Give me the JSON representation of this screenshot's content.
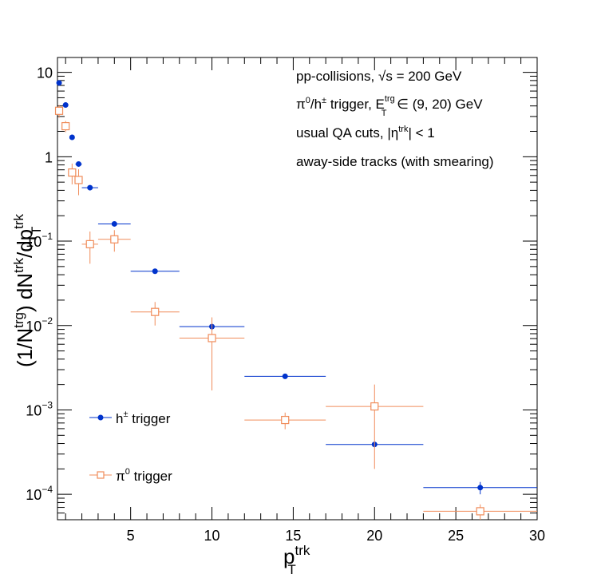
{
  "chart_data": {
    "type": "scatter",
    "xlabel": {
      "main": "p",
      "sup": "trk",
      "sub": "T"
    },
    "ylabel": {
      "open": "(1/N",
      "sup1": "trg",
      "mid": ") dN",
      "sup2": "trk",
      "slash": "/dp",
      "sup3": "trk",
      "sub3": "T"
    },
    "xlim": [
      0.5,
      30
    ],
    "ylim": [
      5e-05,
      15
    ],
    "yscale": "log",
    "xticks": [
      5,
      10,
      15,
      20,
      25,
      30
    ],
    "xtick_labels": [
      "5",
      "10",
      "15",
      "20",
      "25",
      "30"
    ],
    "yticks_labels": [
      {
        "v": 10,
        "base": "10",
        "exp": ""
      },
      {
        "v": 1,
        "base": "1",
        "exp": ""
      },
      {
        "v": 0.1,
        "base": "10",
        "exp": "−1"
      },
      {
        "v": 0.01,
        "base": "10",
        "exp": "−2"
      },
      {
        "v": 0.001,
        "base": "10",
        "exp": "−3"
      },
      {
        "v": 0.0001,
        "base": "10",
        "exp": "−4"
      }
    ],
    "annotations": {
      "line1_a": "pp-collisions, ",
      "line1_sqrt": "√s",
      "line1_b": " = 200 GeV",
      "line2_a": "π",
      "line2_a_sup": "0",
      "line2_b": "/h",
      "line2_b_sup": "±",
      "line2_c": " trigger, E",
      "line2_c_sup": "trg",
      "line2_c_sub": "T",
      "line2_d": " ∈ (9, 20) GeV",
      "line3_a": "usual QA cuts, |η",
      "line3_sup": "trk",
      "line3_b": "| < 1",
      "line4": "away-side tracks (with smearing)"
    },
    "legend": {
      "placement": "bottom-left",
      "h_main": "h",
      "h_sup": "±",
      "h_rest": " trigger",
      "pi_main": "π",
      "pi_sup": "0",
      "pi_rest": " trigger"
    },
    "series": [
      {
        "name": "h± trigger",
        "color": "#0033cc",
        "marker": "filled-circle",
        "points": [
          {
            "x": 0.6,
            "y": 7.5,
            "xerr": 0.1,
            "yerr": 0
          },
          {
            "x": 1.0,
            "y": 4.1,
            "xerr": 0.1,
            "yerr": 0
          },
          {
            "x": 1.4,
            "y": 1.7,
            "xerr": 0.1,
            "yerr": 0
          },
          {
            "x": 1.8,
            "y": 0.82,
            "xerr": 0.2,
            "yerr": 0
          },
          {
            "x": 2.5,
            "y": 0.43,
            "xerr": 0.5,
            "yerr": 0
          },
          {
            "x": 4.0,
            "y": 0.16,
            "xerr": 1.0,
            "yerr": 0
          },
          {
            "x": 6.5,
            "y": 0.044,
            "xerr": 1.5,
            "yerr": 0
          },
          {
            "x": 10.0,
            "y": 0.0097,
            "xerr": 2.0,
            "yerr": 0.001
          },
          {
            "x": 14.5,
            "y": 0.0025,
            "xerr": 2.5,
            "yerr": 0.0001
          },
          {
            "x": 20.0,
            "y": 0.00039,
            "xerr": 3.0,
            "yerr": 3e-05
          },
          {
            "x": 26.5,
            "y": 0.00012,
            "xerr": 3.5,
            "yerr": 2e-05
          }
        ]
      },
      {
        "name": "π0 trigger",
        "color": "#f08c5a",
        "marker": "open-square",
        "points": [
          {
            "x": 0.6,
            "y": 3.5,
            "xerr": 0.1,
            "yerr": 0.6
          },
          {
            "x": 1.0,
            "y": 2.3,
            "xerr": 0.1,
            "yerr": 0.35
          },
          {
            "x": 1.4,
            "y": 0.65,
            "xerr": 0.1,
            "yerr": 0.18
          },
          {
            "x": 1.8,
            "y": 0.53,
            "xerr": 0.2,
            "yerr": 0.18
          },
          {
            "x": 2.5,
            "y": 0.092,
            "xerr": 0.5,
            "yerr": 0.038
          },
          {
            "x": 4.0,
            "y": 0.105,
            "xerr": 1.0,
            "yerr": 0.03
          },
          {
            "x": 6.5,
            "y": 0.0145,
            "xerr": 1.5,
            "yerr": 0.0045
          },
          {
            "x": 10.0,
            "y": 0.0071,
            "xerr": 2.0,
            "yerr": 0.0054
          },
          {
            "x": 14.5,
            "y": 0.00076,
            "xerr": 2.5,
            "yerr": 0.00017
          },
          {
            "x": 20.0,
            "y": 0.0011,
            "xerr": 3.0,
            "yerr": 0.0009
          },
          {
            "x": 26.5,
            "y": 6.3e-05,
            "xerr": 3.5,
            "yerr": 1.3e-05
          }
        ]
      }
    ]
  }
}
